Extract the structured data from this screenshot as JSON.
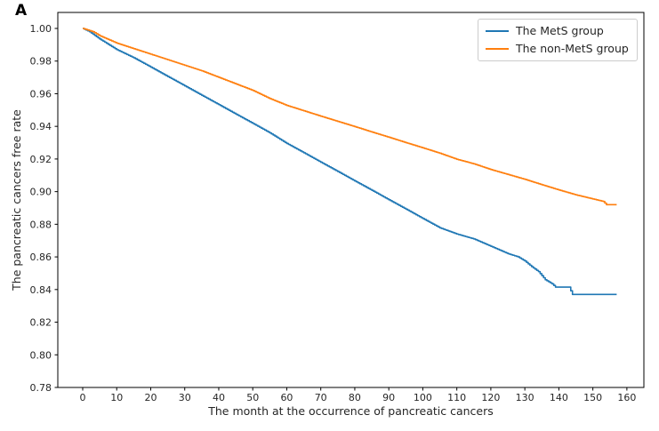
{
  "panel": {
    "label": "A"
  },
  "chart_data": {
    "type": "line",
    "subtype": "kaplan-meier-step",
    "title": "",
    "xlabel": "The month at the occurrence of pancreatic cancers",
    "ylabel": "The pancreatic cancers free rate",
    "xlim": [
      -7.32,
      165.0
    ],
    "ylim": [
      0.78,
      1.0098
    ],
    "xticks": [
      0,
      10,
      20,
      30,
      40,
      50,
      60,
      70,
      80,
      90,
      100,
      110,
      120,
      130,
      140,
      150,
      160
    ],
    "yticks": [
      0.78,
      0.8,
      0.82,
      0.84,
      0.86,
      0.88,
      0.9,
      0.92,
      0.94,
      0.96,
      0.98,
      1.0
    ],
    "grid": false,
    "legend_position": "upper right",
    "colors": {
      "spine": "#000000",
      "tick_label": "#262626",
      "legend_border": "#cccccc"
    },
    "series": [
      {
        "name": "The MetS group",
        "color": "#1f77b4",
        "x": [
          0,
          2,
          5,
          10,
          15,
          20,
          25,
          30,
          35,
          40,
          45,
          50,
          55,
          60,
          65,
          70,
          75,
          80,
          85,
          90,
          95,
          100,
          105,
          110,
          115,
          120,
          125,
          128,
          130,
          132,
          134,
          136,
          138,
          139,
          143,
          144,
          157
        ],
        "y": [
          1.0,
          0.998,
          0.9935,
          0.987,
          0.982,
          0.9763,
          0.9705,
          0.9648,
          0.959,
          0.9533,
          0.9475,
          0.9418,
          0.936,
          0.9295,
          0.9238,
          0.918,
          0.9123,
          0.9065,
          0.9008,
          0.895,
          0.8893,
          0.8835,
          0.8778,
          0.874,
          0.871,
          0.8665,
          0.862,
          0.86,
          0.8575,
          0.854,
          0.851,
          0.846,
          0.8435,
          0.8415,
          0.8415,
          0.837,
          0.837
        ]
      },
      {
        "name": "The non-MetS group",
        "color": "#ff7f0e",
        "x": [
          0,
          3,
          5,
          10,
          15,
          20,
          25,
          30,
          35,
          40,
          45,
          50,
          55,
          60,
          65,
          70,
          75,
          80,
          85,
          90,
          95,
          100,
          105,
          110,
          115,
          120,
          125,
          130,
          135,
          140,
          145,
          150,
          153,
          154,
          157
        ],
        "y": [
          1.0,
          0.998,
          0.9955,
          0.991,
          0.9876,
          0.9842,
          0.9808,
          0.9774,
          0.974,
          0.97,
          0.966,
          0.962,
          0.957,
          0.9528,
          0.9495,
          0.9462,
          0.943,
          0.9398,
          0.9365,
          0.9333,
          0.93,
          0.9268,
          0.9235,
          0.9198,
          0.917,
          0.9135,
          0.9105,
          0.9075,
          0.9042,
          0.901,
          0.898,
          0.8955,
          0.894,
          0.892,
          0.892
        ]
      }
    ]
  }
}
